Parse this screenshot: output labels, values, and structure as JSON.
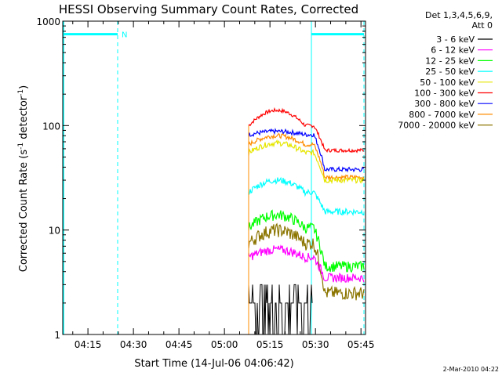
{
  "chart_data": {
    "type": "line",
    "title": "HESSI Observing Summary Count Rates, Corrected",
    "xlabel": "Start Time (14-Jul-06 04:06:42)",
    "ylabel_main": "Corrected Count Rate (s",
    "ylabel_sup1": "-1",
    "ylabel_mid": " detector",
    "ylabel_sup2": "-1",
    "ylabel_end": ")",
    "y_scale": "log",
    "ylim": [
      1,
      1000
    ],
    "y_ticks": [
      1,
      10,
      100,
      1000
    ],
    "y_tick_labels": [
      "1",
      "10",
      "100",
      "1000"
    ],
    "xlim_minutes_after_04:00": [
      6.7,
      46.7
    ],
    "x_ticks": [
      {
        "min": 15,
        "label": "04:15"
      },
      {
        "min": 30,
        "label": "04:30"
      },
      {
        "min": 45,
        "label": "04:45"
      },
      {
        "min": 60,
        "label": "05:00"
      },
      {
        "min": 75,
        "label": "05:15"
      },
      {
        "min": 90,
        "label": "05:30"
      },
      {
        "min": 105,
        "label": "05:45"
      }
    ],
    "legend_placement": "right, outside plot",
    "legend_title_lines": [
      "Det 1,3,4,5,6,9,",
      "Att 0"
    ],
    "series": [
      {
        "name": "3 - 6 keV",
        "color": "#000000"
      },
      {
        "name": "6 - 12 keV",
        "color": "#ff00ff"
      },
      {
        "name": "12 - 25 keV",
        "color": "#00ff00"
      },
      {
        "name": "25 - 50 keV",
        "color": "#00ffff"
      },
      {
        "name": "50 - 100 keV",
        "color": "#e6e600"
      },
      {
        "name": "100 - 300 keV",
        "color": "#ff0000"
      },
      {
        "name": "300 - 800 keV",
        "color": "#0000ff"
      },
      {
        "name": "800 - 7000 keV",
        "color": "#ff8c00"
      },
      {
        "name": "7000 - 20000 keV",
        "color": "#8b7500"
      }
    ],
    "night_marker_label": "N",
    "saa_level": 750,
    "data_start_min": 66.5,
    "data_end_min": 104.5,
    "series_levels": [
      {
        "idx": 5,
        "base": 100,
        "peak": 140,
        "after": 58,
        "noise": 0.04
      },
      {
        "idx": 6,
        "base": 82,
        "peak": 88,
        "after": 38,
        "noise": 0.05
      },
      {
        "idx": 7,
        "base": 66,
        "peak": 80,
        "after": 32,
        "noise": 0.05
      },
      {
        "idx": 4,
        "base": 55,
        "peak": 68,
        "after": 30,
        "noise": 0.06
      },
      {
        "idx": 3,
        "base": 23,
        "peak": 30,
        "after": 15,
        "noise": 0.07
      },
      {
        "idx": 2,
        "base": 10.5,
        "peak": 14,
        "after": 4.5,
        "noise": 0.12
      },
      {
        "idx": 8,
        "base": 7.5,
        "peak": 10,
        "after": 2.5,
        "noise": 0.15
      },
      {
        "idx": 1,
        "base": 5.5,
        "peak": 6.5,
        "after": 3.5,
        "noise": 0.1
      }
    ],
    "black_levels": [
      1,
      2,
      3
    ],
    "footer": "2-Mar-2010 04:22"
  }
}
